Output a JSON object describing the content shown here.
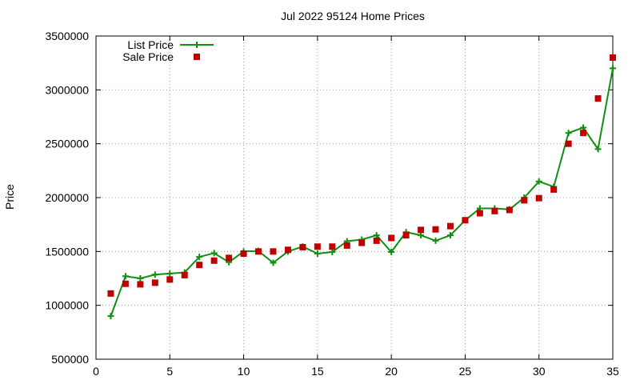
{
  "chart_data": {
    "type": "line",
    "title": "Jul 2022 95124 Home Prices",
    "xlabel": "",
    "ylabel": "Price",
    "xlim": [
      0,
      35
    ],
    "ylim": [
      500000,
      3500000
    ],
    "xticks": [
      0,
      5,
      10,
      15,
      20,
      25,
      30,
      35
    ],
    "yticks": [
      500000,
      1000000,
      1500000,
      2000000,
      2500000,
      3000000,
      3500000
    ],
    "grid": true,
    "legend_position": "top-left",
    "series": [
      {
        "name": "List Price",
        "style": "line+cross",
        "color": "#109010",
        "x": [
          1,
          2,
          3,
          4,
          5,
          6,
          7,
          8,
          9,
          10,
          11,
          12,
          13,
          14,
          15,
          16,
          17,
          18,
          19,
          20,
          21,
          22,
          23,
          24,
          25,
          26,
          27,
          28,
          29,
          30,
          31,
          32,
          33,
          34,
          35
        ],
        "y": [
          900000,
          1270000,
          1250000,
          1285000,
          1295000,
          1305000,
          1450000,
          1485000,
          1400000,
          1500000,
          1505000,
          1395000,
          1500000,
          1545000,
          1480000,
          1495000,
          1595000,
          1610000,
          1650000,
          1495000,
          1680000,
          1650000,
          1600000,
          1650000,
          1790000,
          1900000,
          1900000,
          1890000,
          2000000,
          2150000,
          2100000,
          2600000,
          2650000,
          2450000,
          3200000
        ]
      },
      {
        "name": "Sale Price",
        "style": "square",
        "color": "#c00000",
        "x": [
          1,
          2,
          3,
          4,
          5,
          6,
          7,
          8,
          9,
          10,
          11,
          12,
          13,
          14,
          15,
          16,
          17,
          18,
          19,
          20,
          21,
          22,
          23,
          24,
          25,
          26,
          27,
          28,
          29,
          30,
          31,
          32,
          33,
          34,
          35
        ],
        "y": [
          1110000,
          1200000,
          1195000,
          1210000,
          1240000,
          1280000,
          1375000,
          1415000,
          1440000,
          1480000,
          1500000,
          1500000,
          1515000,
          1540000,
          1545000,
          1545000,
          1555000,
          1580000,
          1600000,
          1625000,
          1650000,
          1700000,
          1705000,
          1735000,
          1790000,
          1855000,
          1875000,
          1885000,
          1975000,
          1995000,
          2075000,
          2500000,
          2600000,
          2920000,
          3300000
        ]
      }
    ]
  }
}
